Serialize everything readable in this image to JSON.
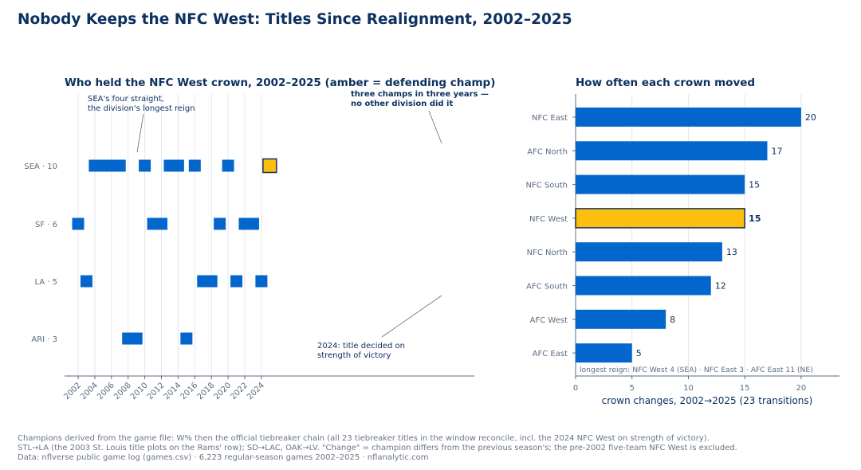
{
  "title": "Nobody Keeps the NFC West: Titles Since Realignment, 2002–2025",
  "footer": [
    "Champions derived from the game file: W% then the official tiebreaker chain (all 23 tiebreaker titles in the window reconcile, incl. the 2024 NFC West on strength of victory).",
    "STL→LA (the 2003 St. Louis title plots on the Rams' row); SD→LAC, OAK→LV. \"Change\" = champion differs from the previous season's; the pre-2002 five-team NFC West is excluded.",
    "Data: nflverse public game log (games.csv) · 6,223 regular-season games 2002–2025 · nflanalytic.com"
  ],
  "colors": {
    "title": "#0d3160",
    "bar": "#0366cc",
    "highlight": "#fdbf0f",
    "highlight_border": "#0d3160",
    "grid": "#e3e6ea",
    "axis": "#5a6b80"
  },
  "chart_data": [
    {
      "type": "scatter",
      "title": "Who held the NFC West crown, 2002–2025 (amber = defending champ)",
      "xlabel": "",
      "ylabel": "",
      "xlim": [
        2001.2,
        2025.9
      ],
      "x_ticks": [
        2002,
        2004,
        2006,
        2008,
        2010,
        2012,
        2014,
        2016,
        2018,
        2020,
        2022,
        2024
      ],
      "rows": [
        {
          "label": "SEA · 10",
          "team": "SEA",
          "titles": 10,
          "years": [
            2004,
            2005,
            2006,
            2007,
            2010,
            2013,
            2014,
            2016,
            2020,
            2025
          ]
        },
        {
          "label": "SF · 6",
          "team": "SF",
          "titles": 6,
          "years": [
            2002,
            2011,
            2012,
            2019,
            2022,
            2023
          ]
        },
        {
          "label": "LA · 5",
          "team": "LA",
          "titles": 5,
          "years": [
            2003,
            2017,
            2018,
            2021,
            2024
          ]
        },
        {
          "label": "ARI · 3",
          "team": "ARI",
          "titles": 3,
          "years": [
            2008,
            2009,
            2015
          ]
        }
      ],
      "defending_champ": {
        "team": "SEA",
        "year": 2025
      },
      "annotations": [
        {
          "text": [
            "SEA's four straight,",
            "the division's longest reign"
          ],
          "bold": false,
          "target": {
            "year": 2005.5,
            "row": "SEA"
          }
        },
        {
          "text": [
            "three champs in three years —",
            "no other division did it"
          ],
          "bold": true,
          "target": {
            "year": 2023.9,
            "row": "SEA"
          }
        },
        {
          "text": [
            "2024: title decided on",
            "strength of victory"
          ],
          "bold": false,
          "target": {
            "year": 2023.9,
            "row": "LA"
          }
        }
      ],
      "grid": "vertical"
    },
    {
      "type": "bar",
      "orientation": "horizontal",
      "title": "How often each crown moved",
      "xlabel": "crown changes, 2002→2025 (23 transitions)",
      "ylabel": "",
      "xlim": [
        0,
        23.4
      ],
      "x_ticks": [
        0,
        5,
        10,
        15,
        20
      ],
      "categories": [
        "NFC East",
        "AFC North",
        "NFC South",
        "NFC West",
        "NFC North",
        "AFC South",
        "AFC West",
        "AFC East"
      ],
      "values": [
        20,
        17,
        15,
        15,
        13,
        12,
        8,
        5
      ],
      "highlight": "NFC West",
      "note": "longest reign: NFC West 4 (SEA) · NFC East 3 · AFC East 11 (NE)",
      "grid": "vertical"
    }
  ]
}
